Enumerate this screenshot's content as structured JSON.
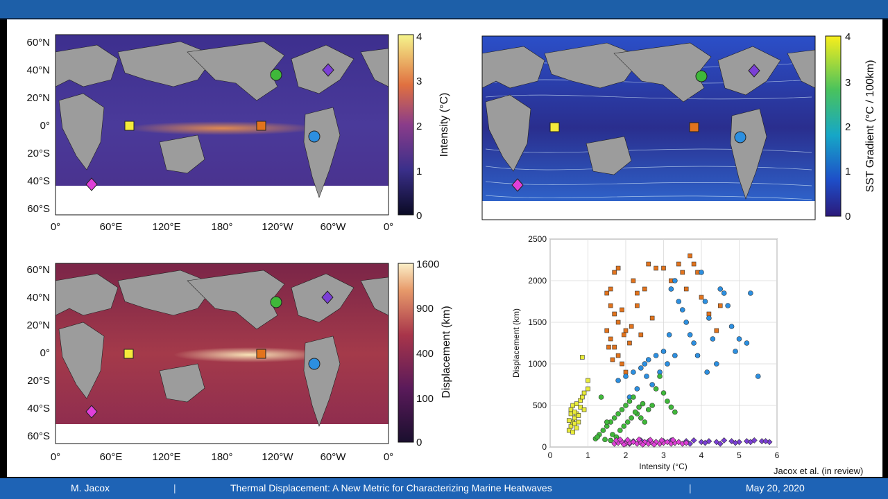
{
  "footer": {
    "author": "M. Jacox",
    "separator": "|",
    "title": "Thermal Displacement: A New Metric for Characterizing Marine Heatwaves",
    "date": "May 20, 2020"
  },
  "citation": "Jacox et al. (in review)",
  "maps": {
    "lat_labels": [
      "60°N",
      "40°N",
      "20°N",
      "0°",
      "20°S",
      "40°S",
      "60°S"
    ],
    "lon_labels": [
      "0°",
      "60°E",
      "120°E",
      "180°",
      "120°W",
      "60°W",
      "0°"
    ],
    "intensity": {
      "colorbar_label": "Intensity (°C)",
      "ticks": [
        "4",
        "3",
        "2",
        "1",
        "0"
      ]
    },
    "gradient": {
      "colorbar_label": "SST Gradient (°C / 100km)",
      "ticks": [
        "4",
        "3",
        "2",
        "1",
        "0"
      ]
    },
    "displacement": {
      "colorbar_label": "Displacement (km)",
      "ticks": [
        "1600",
        "900",
        "400",
        "100",
        "0"
      ]
    }
  },
  "colors": {
    "yellow_square": "#f5ea3b",
    "orange_square": "#e2731c",
    "green_circle": "#3fb83a",
    "blue_circle": "#2c8fe0",
    "purple_diamond": "#7b3fd6",
    "magenta_diamond": "#e03fd9"
  },
  "chart_data": {
    "type": "scatter",
    "xlabel": "Intensity (°C)",
    "ylabel": "Displacement (km)",
    "xlim": [
      0,
      6
    ],
    "ylim": [
      0,
      2500
    ],
    "xticks": [
      "0",
      "1",
      "2",
      "3",
      "4",
      "5",
      "6"
    ],
    "yticks": [
      "0",
      "500",
      "1000",
      "1500",
      "2000",
      "2500"
    ],
    "grid": true,
    "series": [
      {
        "marker": "square",
        "color": "#e8eb3a",
        "points": [
          [
            0.5,
            200
          ],
          [
            0.55,
            250
          ],
          [
            0.6,
            300
          ],
          [
            0.65,
            350
          ],
          [
            0.7,
            400
          ],
          [
            0.55,
            450
          ],
          [
            0.6,
            500
          ],
          [
            0.7,
            520
          ],
          [
            0.8,
            560
          ],
          [
            0.85,
            600
          ],
          [
            0.9,
            650
          ],
          [
            1.0,
            700
          ],
          [
            1.0,
            800
          ],
          [
            0.85,
            1080
          ],
          [
            0.5,
            320
          ],
          [
            0.65,
            280
          ],
          [
            0.75,
            380
          ],
          [
            0.8,
            480
          ],
          [
            0.6,
            180
          ],
          [
            0.7,
            230
          ],
          [
            0.9,
            450
          ],
          [
            0.55,
            400
          ],
          [
            0.65,
            420
          ],
          [
            0.75,
            300
          ]
        ]
      },
      {
        "marker": "square",
        "color": "#e2731c",
        "points": [
          [
            1.5,
            1850
          ],
          [
            1.6,
            1900
          ],
          [
            1.7,
            2100
          ],
          [
            1.8,
            2150
          ],
          [
            1.6,
            1700
          ],
          [
            1.7,
            1600
          ],
          [
            1.8,
            1500
          ],
          [
            1.9,
            1650
          ],
          [
            2.0,
            1400
          ],
          [
            1.5,
            1400
          ],
          [
            1.6,
            1300
          ],
          [
            1.7,
            1200
          ],
          [
            1.8,
            1100
          ],
          [
            1.9,
            1000
          ],
          [
            2.0,
            900
          ],
          [
            2.2,
            2000
          ],
          [
            2.3,
            1700
          ],
          [
            2.5,
            1900
          ],
          [
            2.6,
            2200
          ],
          [
            2.8,
            2150
          ],
          [
            3.0,
            2150
          ],
          [
            3.2,
            2000
          ],
          [
            3.4,
            2200
          ],
          [
            3.5,
            2100
          ],
          [
            3.7,
            2300
          ],
          [
            3.8,
            2200
          ],
          [
            3.6,
            1900
          ],
          [
            3.9,
            2100
          ],
          [
            4.0,
            1800
          ],
          [
            4.2,
            1600
          ],
          [
            4.4,
            1400
          ],
          [
            4.5,
            1700
          ],
          [
            2.1,
            1250
          ],
          [
            2.4,
            1350
          ],
          [
            2.7,
            1550
          ],
          [
            1.55,
            1200
          ],
          [
            1.65,
            1050
          ],
          [
            1.95,
            1350
          ],
          [
            2.15,
            1450
          ],
          [
            2.3,
            1850
          ]
        ]
      },
      {
        "marker": "circle",
        "color": "#2c8fe0",
        "points": [
          [
            1.8,
            800
          ],
          [
            2.0,
            850
          ],
          [
            2.2,
            900
          ],
          [
            2.4,
            950
          ],
          [
            2.5,
            1000
          ],
          [
            2.6,
            1050
          ],
          [
            2.8,
            1100
          ],
          [
            3.0,
            1150
          ],
          [
            3.2,
            1900
          ],
          [
            3.3,
            2000
          ],
          [
            3.4,
            1750
          ],
          [
            3.5,
            1650
          ],
          [
            3.6,
            1500
          ],
          [
            3.7,
            1350
          ],
          [
            3.8,
            1250
          ],
          [
            3.9,
            1100
          ],
          [
            4.0,
            2100
          ],
          [
            4.1,
            1750
          ],
          [
            4.2,
            1550
          ],
          [
            4.3,
            1300
          ],
          [
            4.4,
            1000
          ],
          [
            4.6,
            1850
          ],
          [
            4.7,
            1700
          ],
          [
            4.8,
            1450
          ],
          [
            4.9,
            1150
          ],
          [
            5.0,
            1300
          ],
          [
            5.2,
            1250
          ],
          [
            5.3,
            1850
          ],
          [
            5.5,
            850
          ],
          [
            2.1,
            600
          ],
          [
            2.3,
            700
          ],
          [
            2.7,
            750
          ],
          [
            2.9,
            900
          ],
          [
            3.1,
            1000
          ],
          [
            3.3,
            1100
          ],
          [
            4.5,
            1900
          ],
          [
            4.15,
            900
          ],
          [
            2.55,
            850
          ],
          [
            3.15,
            1350
          ]
        ]
      },
      {
        "marker": "circle",
        "color": "#3fb83a",
        "points": [
          [
            1.2,
            100
          ],
          [
            1.3,
            150
          ],
          [
            1.4,
            200
          ],
          [
            1.5,
            250
          ],
          [
            1.6,
            300
          ],
          [
            1.7,
            350
          ],
          [
            1.8,
            400
          ],
          [
            1.9,
            450
          ],
          [
            2.0,
            500
          ],
          [
            2.1,
            550
          ],
          [
            2.2,
            600
          ],
          [
            2.3,
            400
          ],
          [
            2.4,
            350
          ],
          [
            2.5,
            300
          ],
          [
            2.6,
            450
          ],
          [
            2.7,
            500
          ],
          [
            2.8,
            700
          ],
          [
            2.9,
            850
          ],
          [
            3.0,
            650
          ],
          [
            3.1,
            550
          ],
          [
            3.2,
            480
          ],
          [
            3.3,
            420
          ],
          [
            1.35,
            600
          ],
          [
            1.5,
            300
          ],
          [
            1.65,
            150
          ],
          [
            1.75,
            120
          ],
          [
            1.85,
            200
          ],
          [
            1.95,
            250
          ],
          [
            2.05,
            300
          ],
          [
            2.15,
            350
          ],
          [
            2.25,
            420
          ],
          [
            2.35,
            480
          ],
          [
            2.45,
            520
          ],
          [
            1.45,
            90
          ],
          [
            1.6,
            80
          ],
          [
            1.25,
            120
          ]
        ]
      },
      {
        "marker": "diamond",
        "color": "#7b3fd6",
        "points": [
          [
            2.0,
            60
          ],
          [
            2.2,
            70
          ],
          [
            2.4,
            80
          ],
          [
            2.6,
            70
          ],
          [
            2.8,
            60
          ],
          [
            3.0,
            70
          ],
          [
            3.2,
            80
          ],
          [
            3.4,
            60
          ],
          [
            3.6,
            70
          ],
          [
            3.8,
            80
          ],
          [
            4.0,
            60
          ],
          [
            4.2,
            70
          ],
          [
            4.4,
            60
          ],
          [
            4.6,
            80
          ],
          [
            4.8,
            70
          ],
          [
            5.0,
            60
          ],
          [
            5.2,
            70
          ],
          [
            5.4,
            80
          ],
          [
            5.6,
            70
          ],
          [
            5.8,
            60
          ],
          [
            2.1,
            40
          ],
          [
            2.5,
            50
          ],
          [
            2.9,
            40
          ],
          [
            3.3,
            50
          ],
          [
            3.7,
            40
          ],
          [
            4.1,
            50
          ],
          [
            4.5,
            40
          ],
          [
            4.9,
            50
          ],
          [
            5.3,
            60
          ],
          [
            5.7,
            70
          ]
        ]
      },
      {
        "marker": "diamond",
        "color": "#e03fd9",
        "points": [
          [
            1.7,
            40
          ],
          [
            1.8,
            50
          ],
          [
            1.9,
            60
          ],
          [
            2.0,
            40
          ],
          [
            2.1,
            50
          ],
          [
            2.2,
            60
          ],
          [
            2.3,
            40
          ],
          [
            2.4,
            50
          ],
          [
            2.5,
            60
          ],
          [
            2.6,
            40
          ],
          [
            2.7,
            50
          ],
          [
            2.8,
            60
          ],
          [
            2.9,
            40
          ],
          [
            3.0,
            50
          ],
          [
            3.1,
            60
          ],
          [
            3.2,
            40
          ],
          [
            3.3,
            50
          ],
          [
            3.4,
            60
          ],
          [
            3.5,
            40
          ],
          [
            3.6,
            50
          ],
          [
            1.75,
            80
          ],
          [
            1.85,
            90
          ],
          [
            2.05,
            85
          ],
          [
            2.35,
            90
          ],
          [
            2.65,
            85
          ],
          [
            2.95,
            80
          ],
          [
            3.25,
            85
          ],
          [
            1.95,
            30
          ],
          [
            2.45,
            30
          ],
          [
            2.75,
            30
          ]
        ]
      }
    ]
  }
}
